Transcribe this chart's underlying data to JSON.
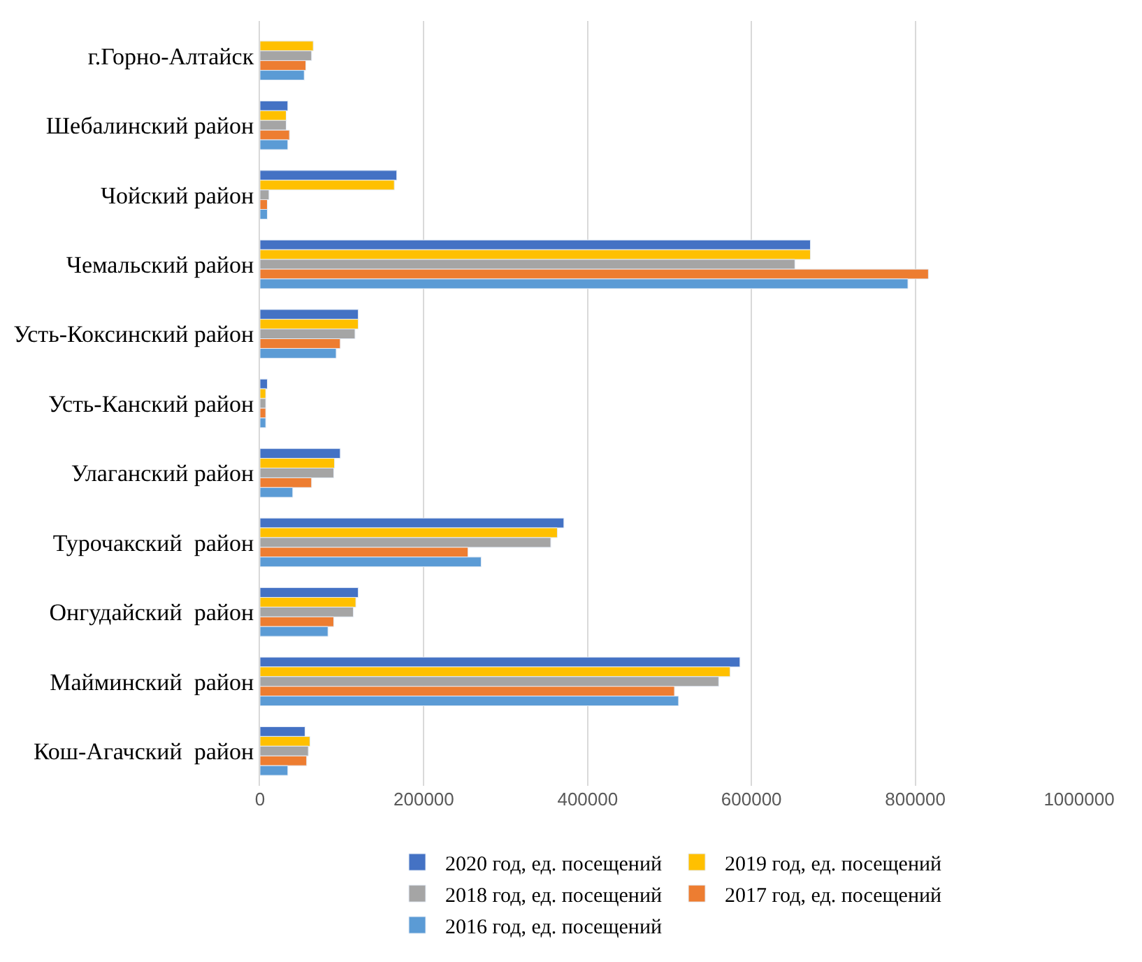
{
  "chart_data": {
    "type": "bar",
    "orientation": "horizontal",
    "categories": [
      "г.Горно-Алтайск",
      "Шебалинский район",
      "Чойский район",
      "Чемальский район",
      "Усть-Коксинский район",
      "Усть-Канский район",
      "Улаганский район",
      "Турочакский  район",
      "Онгудайский  район",
      "Майминский  район",
      "Кош-Агачский  район"
    ],
    "series": [
      {
        "name": "2020 год, ед. посещений",
        "color": "#4472c4",
        "values": [
          null,
          34000,
          167000,
          672000,
          120000,
          9000,
          98000,
          371000,
          120000,
          586000,
          55000
        ]
      },
      {
        "name": "2019 год, ед. посещений",
        "color": "#ffc000",
        "values": [
          65000,
          32000,
          164000,
          672000,
          120000,
          7000,
          91000,
          363000,
          117000,
          574000,
          61000
        ]
      },
      {
        "name": "2018 год, ед. посещений",
        "color": "#a5a5a5",
        "values": [
          63000,
          32000,
          11000,
          653000,
          116000,
          7000,
          90000,
          355000,
          114000,
          560000,
          59000
        ]
      },
      {
        "name": "2017 год, ед. посещений",
        "color": "#ed7d31",
        "values": [
          56000,
          36000,
          9000,
          816000,
          98000,
          7000,
          63000,
          254000,
          90000,
          506000,
          57000
        ]
      },
      {
        "name": "2016 год, ед. посещений",
        "color": "#5b9bd5",
        "values": [
          54000,
          34000,
          9000,
          791000,
          93000,
          7000,
          40000,
          270000,
          83000,
          511000,
          34000
        ]
      }
    ],
    "xlim": [
      0,
      1000000
    ],
    "xticks": [
      0,
      200000,
      400000,
      600000,
      800000,
      1000000
    ],
    "grid": "x",
    "legend": "bottom"
  }
}
